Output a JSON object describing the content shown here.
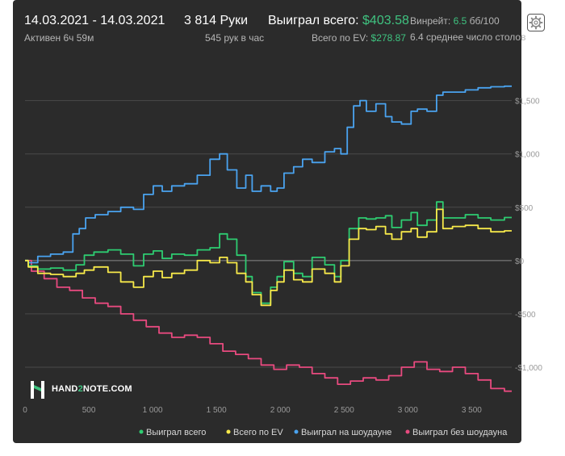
{
  "header": {
    "date_range": "14.03.2021 - 14.03.2021",
    "active": "Активен 6ч 59м",
    "hands": "3 814 Руки",
    "hands_per_hour": "545 рук в час",
    "won_total_label": "Выиграл всего:",
    "won_total_value": "$403.58",
    "ev_label": "Всего по EV:",
    "ev_value": "$278.87",
    "winrate_label": "Винрейт:",
    "winrate_value": "6.5",
    "winrate_unit": "бб/100",
    "tables_avg": "6.4 среднее число столов"
  },
  "logo": {
    "text_a": "HAND",
    "text_b": "2",
    "text_c": "NOTE.COM"
  },
  "colors": {
    "won_total": "#2ecc71",
    "ev": "#f7e94a",
    "showdown": "#4aa3f0",
    "non_showdown": "#e84a7f",
    "accent": "#3fc380"
  },
  "chart_data": {
    "type": "line",
    "xlim": [
      0,
      3814
    ],
    "ylim": [
      -1250,
      1800
    ],
    "x_ticks": [
      0,
      500,
      1000,
      1500,
      2000,
      2500,
      3000,
      3500
    ],
    "x_tick_labels": [
      "0",
      "500",
      "1 000",
      "1 500",
      "2 000",
      "2 500",
      "3 000",
      "3 500"
    ],
    "y_ticks": [
      -1000,
      -500,
      0,
      500,
      1000,
      1500
    ],
    "y_tick_labels": [
      "-$1,000",
      "-$500",
      "$0",
      "$500",
      "$1,000",
      "$1,500"
    ],
    "grid": true,
    "legend_position": "bottom",
    "series": [
      {
        "name": "Выиграл всего",
        "color": "#2ecc71",
        "x": [
          0,
          50,
          150,
          250,
          350,
          450,
          480,
          600,
          700,
          800,
          900,
          960,
          1050,
          1100,
          1200,
          1300,
          1400,
          1500,
          1550,
          1620,
          1700,
          1760,
          1800,
          1900,
          1950,
          2000,
          2060,
          2150,
          2200,
          2300,
          2400,
          2450,
          2500,
          2580,
          2650,
          2700,
          2800,
          2850,
          2900,
          3000,
          3050,
          3100,
          3200,
          3250,
          3300,
          3400,
          3500,
          3600,
          3700,
          3814
        ],
        "y": [
          0,
          -50,
          -80,
          -70,
          -90,
          -40,
          50,
          80,
          100,
          60,
          -50,
          60,
          90,
          20,
          60,
          50,
          100,
          120,
          250,
          200,
          50,
          -150,
          -300,
          -400,
          -250,
          -150,
          -10,
          -120,
          -150,
          30,
          -40,
          -150,
          0,
          300,
          400,
          390,
          400,
          420,
          310,
          380,
          450,
          330,
          380,
          550,
          400,
          400,
          430,
          400,
          380,
          404
        ]
      },
      {
        "name": "Всего по EV",
        "color": "#f7e94a",
        "x": [
          0,
          50,
          150,
          250,
          350,
          450,
          480,
          600,
          700,
          800,
          900,
          960,
          1050,
          1100,
          1200,
          1300,
          1400,
          1500,
          1550,
          1620,
          1700,
          1760,
          1800,
          1900,
          1950,
          2000,
          2060,
          2150,
          2200,
          2300,
          2400,
          2450,
          2500,
          2580,
          2650,
          2700,
          2800,
          2850,
          2900,
          3000,
          3050,
          3100,
          3200,
          3250,
          3300,
          3400,
          3500,
          3600,
          3700,
          3814
        ],
        "y": [
          0,
          -60,
          -120,
          -130,
          -150,
          -120,
          -90,
          -60,
          -110,
          -200,
          -250,
          -150,
          -100,
          -160,
          -120,
          -90,
          0,
          -20,
          30,
          -20,
          -120,
          -200,
          -320,
          -420,
          -280,
          -200,
          -90,
          -180,
          -200,
          -80,
          -120,
          -200,
          -50,
          200,
          300,
          290,
          320,
          250,
          200,
          270,
          300,
          220,
          270,
          480,
          300,
          320,
          330,
          300,
          270,
          279
        ]
      },
      {
        "name": "Выиграл на шоудауне",
        "color": "#4aa3f0",
        "x": [
          0,
          50,
          150,
          250,
          350,
          400,
          450,
          500,
          600,
          700,
          800,
          900,
          960,
          1050,
          1100,
          1200,
          1300,
          1400,
          1500,
          1550,
          1620,
          1700,
          1760,
          1800,
          1900,
          1950,
          2000,
          2060,
          2150,
          2200,
          2300,
          2400,
          2450,
          2500,
          2550,
          2600,
          2650,
          2700,
          2800,
          2850,
          2900,
          3000,
          3050,
          3100,
          3200,
          3250,
          3300,
          3400,
          3500,
          3600,
          3700,
          3814
        ],
        "y": [
          0,
          -20,
          40,
          60,
          80,
          250,
          300,
          400,
          430,
          460,
          500,
          480,
          620,
          700,
          650,
          700,
          720,
          800,
          950,
          1000,
          850,
          680,
          800,
          650,
          700,
          650,
          680,
          820,
          880,
          950,
          920,
          1020,
          1050,
          1000,
          1250,
          1450,
          1500,
          1400,
          1470,
          1350,
          1300,
          1280,
          1400,
          1420,
          1400,
          1550,
          1580,
          1580,
          1600,
          1620,
          1630,
          1635
        ]
      },
      {
        "name": "Выиграл без шоудауна",
        "color": "#e84a7f",
        "x": [
          0,
          100,
          200,
          300,
          400,
          500,
          600,
          700,
          800,
          900,
          1000,
          1100,
          1200,
          1300,
          1400,
          1500,
          1600,
          1700,
          1800,
          1900,
          2000,
          2100,
          2200,
          2300,
          2400,
          2500,
          2600,
          2700,
          2800,
          2900,
          3000,
          3100,
          3200,
          3300,
          3400,
          3500,
          3600,
          3700,
          3814
        ],
        "y": [
          0,
          -100,
          -170,
          -250,
          -280,
          -350,
          -400,
          -430,
          -500,
          -560,
          -620,
          -680,
          -720,
          -700,
          -720,
          -780,
          -850,
          -880,
          -920,
          -980,
          -1020,
          -980,
          -1000,
          -1060,
          -1100,
          -1160,
          -1130,
          -1100,
          -1120,
          -1080,
          -1000,
          -950,
          -1020,
          -1040,
          -1000,
          -1060,
          -1120,
          -1200,
          -1225
        ]
      }
    ]
  }
}
